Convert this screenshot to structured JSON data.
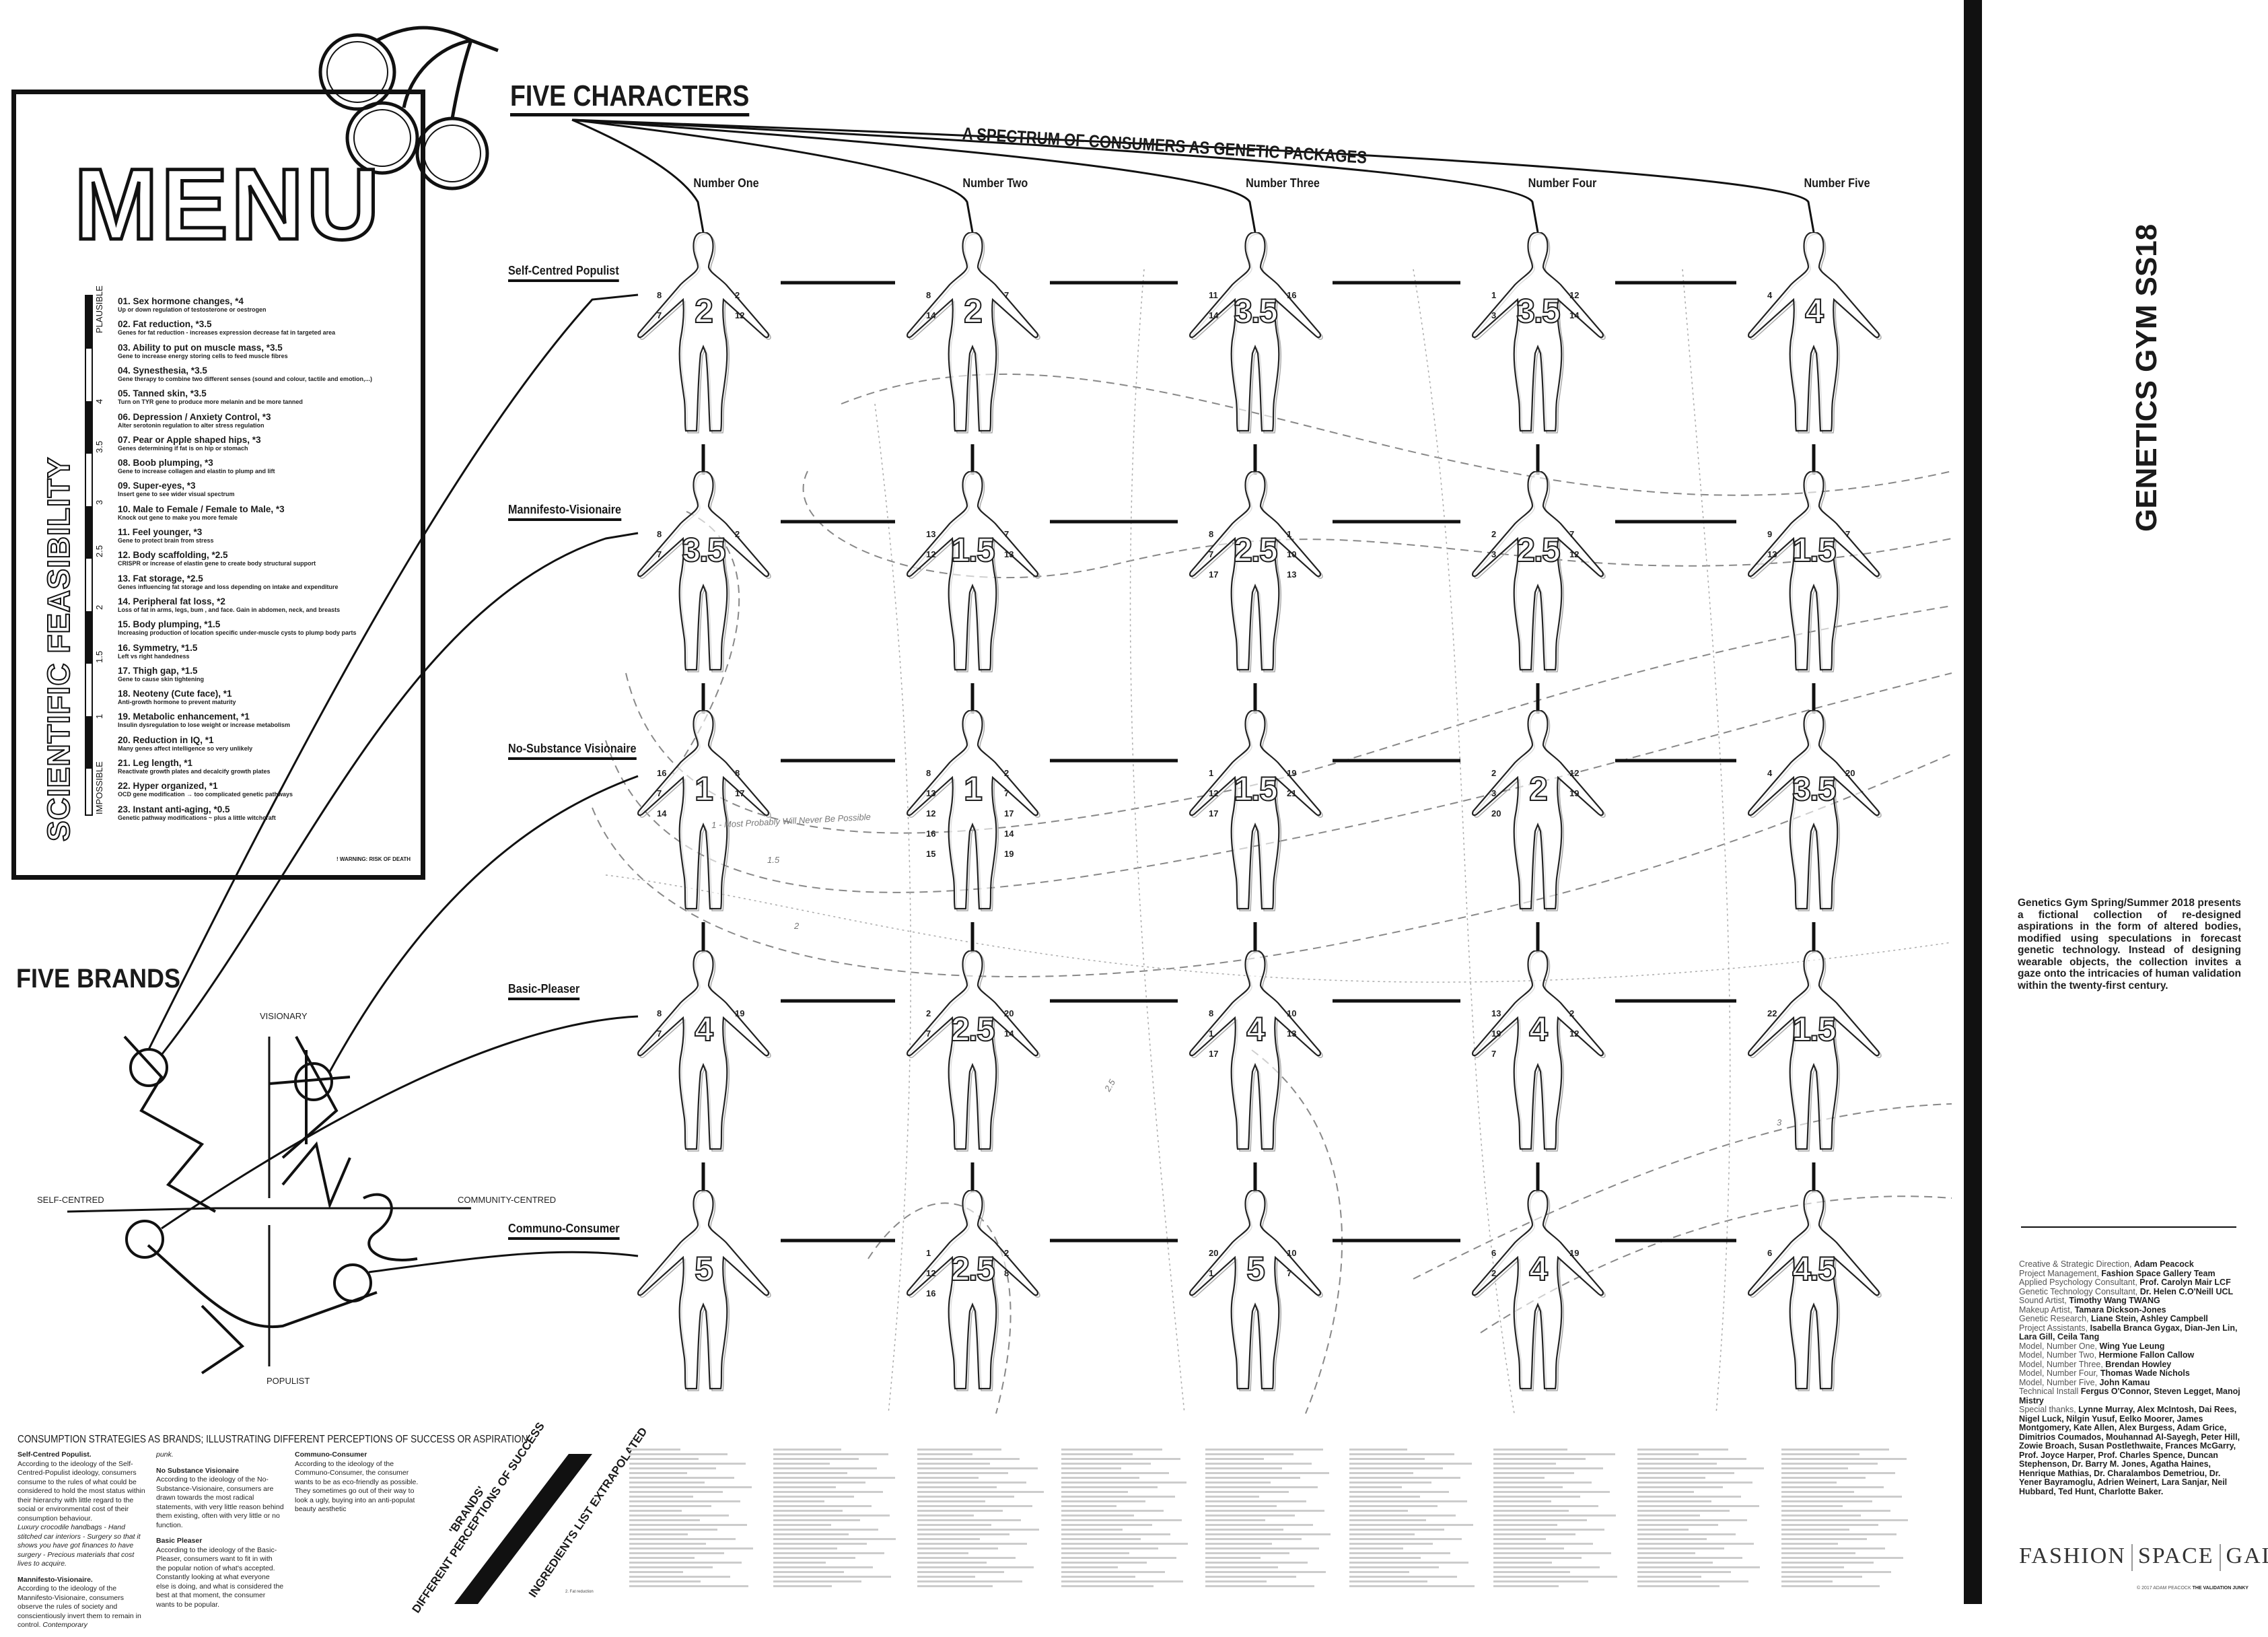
{
  "menu": {
    "title": "MENU",
    "feasibility_label": "SCIENTIFIC FEASIBILITY",
    "scale_labels": [
      "PLAUSIBLE",
      "4",
      "3.5",
      "3",
      "2.5",
      "2",
      "1.5",
      "1",
      "IMPOSSIBLE"
    ],
    "warning": "! WARNING: RISK OF DEATH",
    "items": [
      {
        "title": "01. Sex hormone changes, *4",
        "desc": "Up or down regulation of testosterone or oestrogen"
      },
      {
        "title": "02. Fat reduction, *3.5",
        "desc": "Genes for fat reduction - increases expression decrease fat in targeted area"
      },
      {
        "title": "03. Ability to put on muscle mass, *3.5",
        "desc": "Gene to increase energy storing cells to feed muscle fibres"
      },
      {
        "title": "04. Synesthesia, *3.5",
        "desc": "Gene therapy to combine two different senses (sound and colour, tactile and emotion,...)"
      },
      {
        "title": "05. Tanned skin, *3.5",
        "desc": "Turn on TYR gene to produce more melanin and be more tanned"
      },
      {
        "title": "06. Depression / Anxiety Control, *3",
        "desc": "Alter serotonin regulation to alter stress regulation"
      },
      {
        "title": "07. Pear or Apple shaped hips, *3",
        "desc": "Genes determining if fat is on hip or stomach"
      },
      {
        "title": "08. Boob plumping, *3",
        "desc": "Gene to increase collagen and elastin to plump and lift"
      },
      {
        "title": "09. Super-eyes, *3",
        "desc": "Insert gene to see wider visual spectrum"
      },
      {
        "title": "10. Male to Female / Female to Male, *3",
        "desc": "Knock out gene to make you more female"
      },
      {
        "title": "11. Feel younger, *3",
        "desc": "Gene to protect brain from stress"
      },
      {
        "title": "12. Body scaffolding, *2.5",
        "desc": "CRISPR or increase of elastin gene to create body structural support"
      },
      {
        "title": "13.  Fat storage, *2.5",
        "desc": "Genes influencing fat storage and loss depending on intake and expenditure"
      },
      {
        "title": "14. Peripheral fat loss, *2",
        "desc": "Loss of fat in arms, legs, bum , and face. Gain in abdomen, neck, and breasts"
      },
      {
        "title": "15. Body plumping, *1.5",
        "desc": "Increasing production of location specific under-muscle cysts to plump body parts"
      },
      {
        "title": "16. Symmetry, *1.5",
        "desc": "Left vs right handedness"
      },
      {
        "title": "17. Thigh gap, *1.5",
        "desc": "Gene to cause skin tightening"
      },
      {
        "title": "18. Neoteny (Cute face), *1",
        "desc": "Anti-growth hormone to prevent maturity"
      },
      {
        "title": "19. Metabolic enhancement, *1",
        "desc": "Insulin dysregulation to lose weight or increase metabolism"
      },
      {
        "title": "20. Reduction in IQ, *1",
        "desc": "Many genes affect intelligence so very unlikely"
      },
      {
        "title": "21. Leg length, *1",
        "desc": "Reactivate growth plates and decalcify growth plates"
      },
      {
        "title": "22. Hyper organized, *1",
        "desc": "OCD gene modification → too complicated genetic pathways"
      },
      {
        "title": "23. Instant anti-aging, *0.5",
        "desc": "Genetic pathway modifications ~ plus a little witchcraft"
      }
    ]
  },
  "characters": {
    "title": "FIVE CHARACTERS",
    "subtitle": "A SPECTRUM OF CONSUMERS AS GENETIC PACKAGES",
    "columns": [
      "Number One",
      "Number Two",
      "Number Three",
      "Number Four",
      "Number Five"
    ],
    "rows": [
      "Self-Centred Populist",
      "Mannifesto-Visionaire",
      "No-Substance Visionaire",
      "Basic-Pleaser",
      "Communo-Consumer"
    ],
    "figures": [
      [
        {
          "score": "2",
          "ann": [
            "8",
            "2",
            "7",
            "12"
          ]
        },
        {
          "score": "2",
          "ann": [
            "8",
            "7",
            "14"
          ]
        },
        {
          "score": "3.5",
          "ann": [
            "11",
            "16",
            "14"
          ]
        },
        {
          "score": "3.5",
          "ann": [
            "1",
            "12",
            "3",
            "14"
          ]
        },
        {
          "score": "4",
          "ann": [
            "4"
          ]
        }
      ],
      [
        {
          "score": "3.5",
          "ann": [
            "8",
            "2",
            "7"
          ]
        },
        {
          "score": "1.5",
          "ann": [
            "13",
            "7",
            "12",
            "13"
          ]
        },
        {
          "score": "2.5",
          "ann": [
            "8",
            "1",
            "7",
            "10",
            "17",
            "13"
          ]
        },
        {
          "score": "2.5",
          "ann": [
            "2",
            "7",
            "3",
            "12"
          ]
        },
        {
          "score": "1.5",
          "ann": [
            "9",
            "7",
            "13"
          ]
        }
      ],
      [
        {
          "score": "1",
          "ann": [
            "16",
            "8",
            "7",
            "17",
            "14"
          ]
        },
        {
          "score": "1",
          "ann": [
            "8",
            "2",
            "13",
            "7",
            "12",
            "17",
            "16",
            "14",
            "15",
            "19"
          ]
        },
        {
          "score": "1.5",
          "ann": [
            "1",
            "19",
            "12",
            "21",
            "17"
          ]
        },
        {
          "score": "2",
          "ann": [
            "2",
            "12",
            "3",
            "19",
            "20"
          ]
        },
        {
          "score": "3.5",
          "ann": [
            "4",
            "20"
          ]
        }
      ],
      [
        {
          "score": "4",
          "ann": [
            "8",
            "19",
            "7"
          ]
        },
        {
          "score": "2.5",
          "ann": [
            "2",
            "20",
            "7",
            "14"
          ]
        },
        {
          "score": "4",
          "ann": [
            "8",
            "10",
            "1",
            "13",
            "17"
          ]
        },
        {
          "score": "4",
          "ann": [
            "13",
            "2",
            "19",
            "12",
            "7"
          ]
        },
        {
          "score": "1.5",
          "ann": [
            "22"
          ]
        }
      ],
      [
        {
          "score": "5",
          "ann": []
        },
        {
          "score": "2.5",
          "ann": [
            "1",
            "2",
            "12",
            "8",
            "16"
          ]
        },
        {
          "score": "5",
          "ann": [
            "20",
            "10",
            "1",
            "7"
          ]
        },
        {
          "score": "4",
          "ann": [
            "6",
            "19",
            "2"
          ]
        },
        {
          "score": "4.5",
          "ann": [
            "6"
          ]
        }
      ]
    ],
    "contour_labels": [
      "1 - Most Probably Will Never Be Possible",
      "1.5",
      "2",
      "2.5",
      "3"
    ]
  },
  "brands": {
    "title": "FIVE BRANDS",
    "axes": {
      "top": "VISIONARY",
      "left": "SELF-CENTRED",
      "right": "COMMUNITY-CENTRED",
      "bottom": "POPULIST"
    }
  },
  "strategies": {
    "heading": "CONSUMPTION STRATEGIES AS BRANDS; ILLUSTRATING DIFFERENT PERCEPTIONS OF SUCCESS OR ASPIRATION",
    "col1": {
      "h1": "Self-Centred Populist.",
      "p1": "According to the ideology of the Self-Centred-Populist ideology, consumers consume to the rules of what could be considered to hold the most status within their hierarchy with little regard to the social or environmental cost of their consumption behaviour.",
      "i1": "Luxury crocodile handbags - Hand stitched car interiors - Surgery so that it shows you have got finances to have surgery - Precious materials that cost lives to acquire.",
      "h2": "Mannifesto-Visionaire.",
      "p2": "According to the ideology of the Mannifesto-Visionaire, consumers observe the rules of society and conscientiously invert them to remain in control.",
      "i2": "Contemporary"
    },
    "col2": {
      "i0": "punk.",
      "h1": "No Substance Visionaire",
      "p1": "According to the ideology of the No-Substance-Visionaire, consumers are drawn towards the most radical statements, with very little reason behind them existing, often with very little or no function.",
      "h2": "Basic Pleaser",
      "p2": "According to the ideology of the Basic-Pleaser, consumers want to fit in with the popular notion of what's accepted. Constantly looking at what everyone else is doing, and what is considered the best at that moment, the consumer wants to be popular."
    },
    "col3": {
      "h1": "Communo-Consumer",
      "p1": "According to the ideology of the Communo-Consumer, the consumer wants to be as eco-friendly as possible. They sometimes go out of their way to look a ugly, buying into an anti-populat beauty aesthetic"
    },
    "diag_brands_1": "'BRANDS'",
    "diag_brands_2": "DIFFERENT PERCEPTIONS OF SUCCESS",
    "diag_ingredients": "INGREDIENTS LIST EXTRAPOLATED",
    "ref_footer": "2. Fat reduction"
  },
  "side": {
    "title": "GENETICS GYM SS18",
    "description": "Genetics Gym Spring/Summer 2018 presents a fictional collection of re-designed aspirations in the form of altered bodies, modified using speculations in forecast genetic technology. Instead of designing wearable objects, the collection invites a gaze onto the intricacies of human validation within the twenty-first century.",
    "credits": [
      {
        "role": "Creative & Strategic Direction, ",
        "names": "Adam Peacock"
      },
      {
        "role": "Project Management, ",
        "names": "Fashion Space Gallery Team"
      },
      {
        "role": "Applied Psychology Consultant, ",
        "names": "Prof. Carolyn Mair LCF"
      },
      {
        "role": "Genetic Technology Consultant, ",
        "names": "Dr. Helen C.O'Neill UCL"
      },
      {
        "role": "Sound Artist, ",
        "names": "Timothy Wang TWANG"
      },
      {
        "role": "Makeup Artist, ",
        "names": "Tamara Dickson-Jones"
      },
      {
        "role": "Genetic Research, ",
        "names": "Liane Stein, Ashley Campbell"
      },
      {
        "role": "Project Assistants, ",
        "names": "Isabella Branca Gygax, Dian-Jen Lin, Lara Gill, Ceila Tang"
      },
      {
        "role": "Model, Number One, ",
        "names": "Wing Yue Leung"
      },
      {
        "role": "Model, Number Two, ",
        "names": "Hermione Fallon Callow"
      },
      {
        "role": "Model, Number Three, ",
        "names": "Brendan Howley"
      },
      {
        "role": "Model, Number Four, ",
        "names": "Thomas Wade Nichols"
      },
      {
        "role": "Model, Number Five, ",
        "names": "John Kamau"
      },
      {
        "role": "Technical Install ",
        "names": "Fergus O'Connor, Steven Legget, Manoj Mistry"
      },
      {
        "role": "Special thanks, ",
        "names": "Lynne Murray, Alex McIntosh, Dai Rees, Nigel Luck, Nilgin Yusuf, Eelko Moorer, James Montgomery, Kate Allen, Alex Burgess, Adam Grice, Dimitrios Coumados, Mouhannad Al-Sayegh, Peter Hill, Zowie Broach, Susan Postlethwaite, Frances McGarry, Prof. Joyce Harper, Prof. Charles Spence, Duncan Stephenson, Dr. Barry M. Jones, Agatha Haines, Henrique Mathias, Dr. Charalambos Demetriou, Dr. Yener Bayramoglu, Adrien Weinert, Lara Sanjar, Neil Hubbard, Ted Hunt, Charlotte Baker."
      }
    ],
    "logo": [
      "FASHION",
      "SPACE",
      "GALLERY"
    ],
    "copyright_prefix": "© 2017 ADAM PEACOCK ",
    "copyright_bold": "THE VALIDATION JUNKY"
  }
}
